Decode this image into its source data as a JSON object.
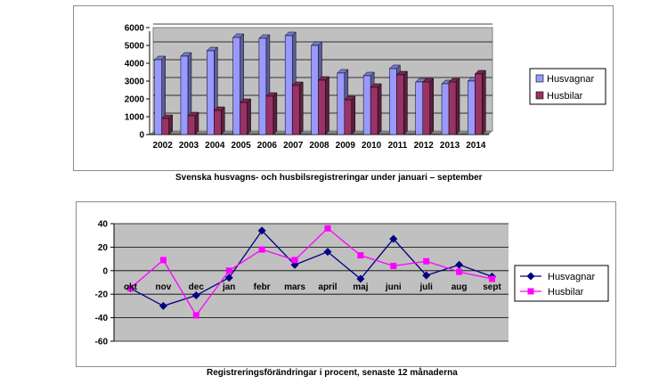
{
  "captions": {
    "chart1": "Svenska husvagns- och husbilsregistreringar under januari – september",
    "chart2": "Registreringsförändringar i procent, senaste 12 månaderna"
  },
  "chart_data": [
    {
      "type": "bar",
      "title": "",
      "categories": [
        "2002",
        "2003",
        "2004",
        "2005",
        "2006",
        "2007",
        "2008",
        "2009",
        "2010",
        "2011",
        "2012",
        "2013",
        "2014"
      ],
      "series": [
        {
          "name": "Husvagnar",
          "color": "#9999ff",
          "values": [
            4200,
            4400,
            4700,
            5450,
            5400,
            5550,
            5000,
            3450,
            3300,
            3700,
            2950,
            2850,
            3000
          ]
        },
        {
          "name": "Husbilar",
          "color": "#993366",
          "values": [
            900,
            1050,
            1350,
            1800,
            2150,
            2750,
            3050,
            1950,
            2650,
            3350,
            2950,
            2950,
            3400
          ]
        }
      ],
      "yticks": [
        0,
        1000,
        2000,
        3000,
        4000,
        5000,
        6000
      ],
      "ylim": [
        0,
        6000
      ],
      "grid": true,
      "legend": "right",
      "plot_bg": "#c0c0c0"
    },
    {
      "type": "line",
      "title": "",
      "categories": [
        "okt",
        "nov",
        "dec",
        "jan",
        "febr",
        "mars",
        "april",
        "maj",
        "juni",
        "juli",
        "aug",
        "sept"
      ],
      "series": [
        {
          "name": "Husvagnar",
          "color": "#000080",
          "marker": "diamond",
          "values": [
            -15,
            -30,
            -21,
            -6,
            34,
            5,
            16,
            -7,
            27,
            -4,
            5,
            -5
          ]
        },
        {
          "name": "Husbilar",
          "color": "#ff00ff",
          "marker": "square",
          "values": [
            -15,
            9,
            -38,
            0,
            18,
            9,
            36,
            13,
            4,
            8,
            -1,
            -7
          ]
        }
      ],
      "yticks": [
        -60,
        -40,
        -20,
        0,
        20,
        40
      ],
      "ylim": [
        -60,
        40
      ],
      "grid": true,
      "legend": "right",
      "plot_bg": "#c0c0c0"
    }
  ]
}
